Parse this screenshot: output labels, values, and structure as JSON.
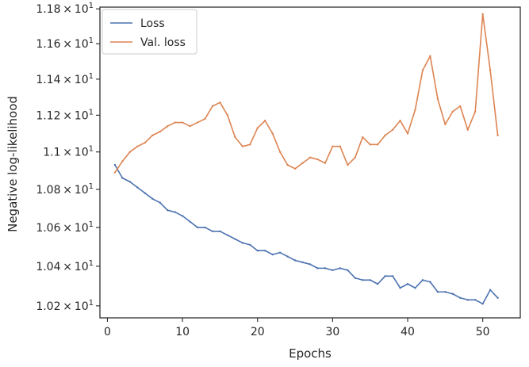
{
  "chart_data": {
    "type": "line",
    "title": "",
    "xlabel": "Epochs",
    "ylabel": "Negative log-likelihood",
    "xlim": [
      -1,
      55
    ],
    "ylim": [
      10.14,
      11.81
    ],
    "y_scale": "log",
    "grid": false,
    "legend_position": "top-left",
    "x_ticks": [
      0,
      10,
      20,
      30,
      40,
      50
    ],
    "y_ticks": [
      {
        "value": 10.2,
        "mantissa": "1.02",
        "exp": "1"
      },
      {
        "value": 10.4,
        "mantissa": "1.04",
        "exp": "1"
      },
      {
        "value": 10.6,
        "mantissa": "1.06",
        "exp": "1"
      },
      {
        "value": 10.8,
        "mantissa": "1.08",
        "exp": "1"
      },
      {
        "value": 11.0,
        "mantissa": "1.1",
        "exp": "1"
      },
      {
        "value": 11.2,
        "mantissa": "1.12",
        "exp": "1"
      },
      {
        "value": 11.4,
        "mantissa": "1.14",
        "exp": "1"
      },
      {
        "value": 11.6,
        "mantissa": "1.16",
        "exp": "1"
      },
      {
        "value": 11.8,
        "mantissa": "1.18",
        "exp": "1"
      }
    ],
    "x": [
      1,
      2,
      3,
      4,
      5,
      6,
      7,
      8,
      9,
      10,
      11,
      12,
      13,
      14,
      15,
      16,
      17,
      18,
      19,
      20,
      21,
      22,
      23,
      24,
      25,
      26,
      27,
      28,
      29,
      30,
      31,
      32,
      33,
      34,
      35,
      36,
      37,
      38,
      39,
      40,
      41,
      42,
      43,
      44,
      45,
      46,
      47,
      48,
      49,
      50,
      51,
      52
    ],
    "series": [
      {
        "name": "Loss",
        "color": "#4c72b0",
        "values": [
          10.93,
          10.86,
          10.84,
          10.81,
          10.78,
          10.75,
          10.73,
          10.69,
          10.68,
          10.66,
          10.63,
          10.6,
          10.6,
          10.58,
          10.58,
          10.56,
          10.54,
          10.52,
          10.51,
          10.48,
          10.48,
          10.46,
          10.47,
          10.45,
          10.43,
          10.42,
          10.41,
          10.39,
          10.39,
          10.38,
          10.39,
          10.38,
          10.34,
          10.33,
          10.33,
          10.31,
          10.35,
          10.35,
          10.29,
          10.31,
          10.29,
          10.33,
          10.32,
          10.27,
          10.27,
          10.26,
          10.24,
          10.23,
          10.23,
          10.21,
          10.28,
          10.24
        ]
      },
      {
        "name": "Val. loss",
        "color": "#dd8452",
        "values": [
          10.89,
          10.95,
          11.0,
          11.03,
          11.05,
          11.09,
          11.11,
          11.14,
          11.16,
          11.16,
          11.14,
          11.16,
          11.18,
          11.25,
          11.27,
          11.2,
          11.08,
          11.03,
          11.04,
          11.13,
          11.17,
          11.1,
          11.0,
          10.93,
          10.91,
          10.94,
          10.97,
          10.96,
          10.94,
          11.03,
          11.03,
          10.93,
          10.97,
          11.08,
          11.04,
          11.04,
          11.09,
          11.12,
          11.17,
          11.1,
          11.23,
          11.45,
          11.53,
          11.29,
          11.15,
          11.22,
          11.25,
          11.12,
          11.22,
          11.77,
          11.45,
          11.09
        ]
      }
    ]
  }
}
